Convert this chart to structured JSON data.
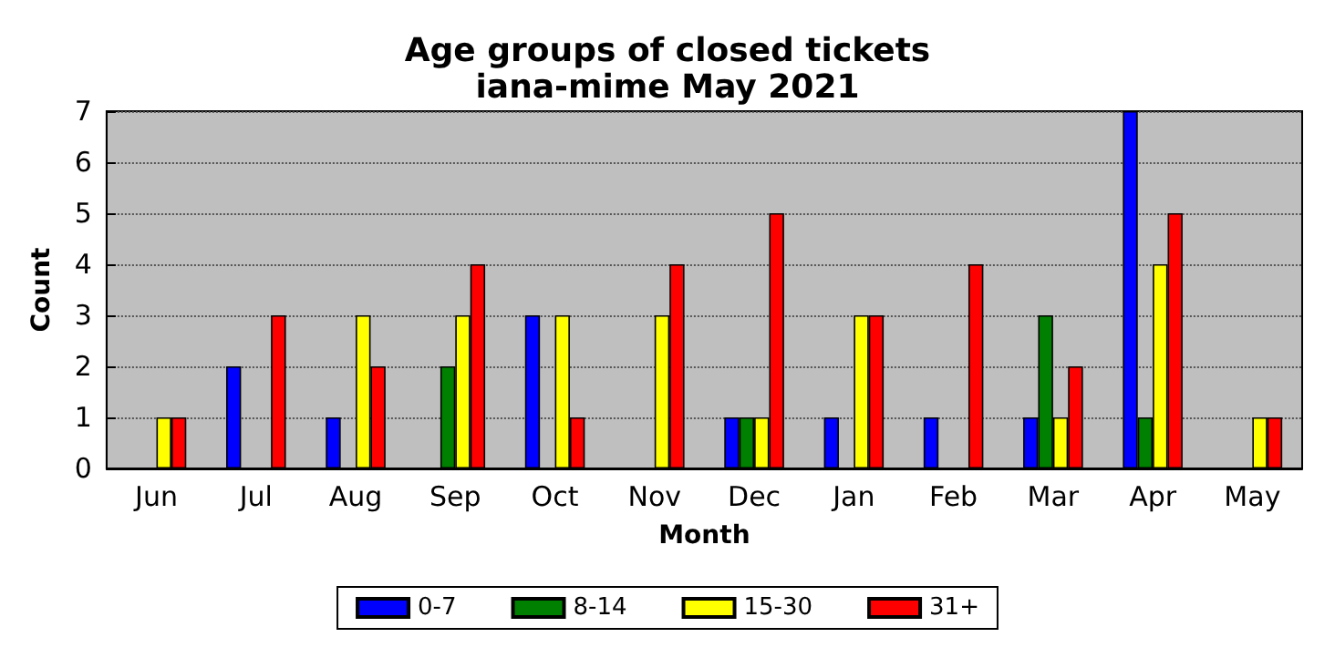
{
  "chart_data": {
    "type": "bar",
    "title": "Age groups of closed tickets",
    "subtitle": "iana-mime May 2021",
    "xlabel": "Month",
    "ylabel": "Count",
    "categories": [
      "Jun",
      "Jul",
      "Aug",
      "Sep",
      "Oct",
      "Nov",
      "Dec",
      "Jan",
      "Feb",
      "Mar",
      "Apr",
      "May"
    ],
    "series": [
      {
        "name": "0-7",
        "color": "#0000ff",
        "values": [
          0,
          2,
          1,
          0,
          3,
          0,
          1,
          1,
          1,
          1,
          7,
          0
        ]
      },
      {
        "name": "8-14",
        "color": "#008000",
        "values": [
          0,
          0,
          0,
          2,
          0,
          0,
          1,
          0,
          0,
          3,
          1,
          0
        ]
      },
      {
        "name": "15-30",
        "color": "#ffff00",
        "values": [
          1,
          0,
          3,
          3,
          3,
          3,
          1,
          3,
          0,
          1,
          4,
          1
        ]
      },
      {
        "name": "31+",
        "color": "#ff0000",
        "values": [
          1,
          3,
          2,
          4,
          1,
          4,
          5,
          3,
          4,
          2,
          5,
          1
        ]
      }
    ],
    "ylim": [
      0,
      7
    ],
    "yticks": [
      0,
      1,
      2,
      3,
      4,
      5,
      6,
      7
    ],
    "grid": "y",
    "legend": "bottom"
  }
}
